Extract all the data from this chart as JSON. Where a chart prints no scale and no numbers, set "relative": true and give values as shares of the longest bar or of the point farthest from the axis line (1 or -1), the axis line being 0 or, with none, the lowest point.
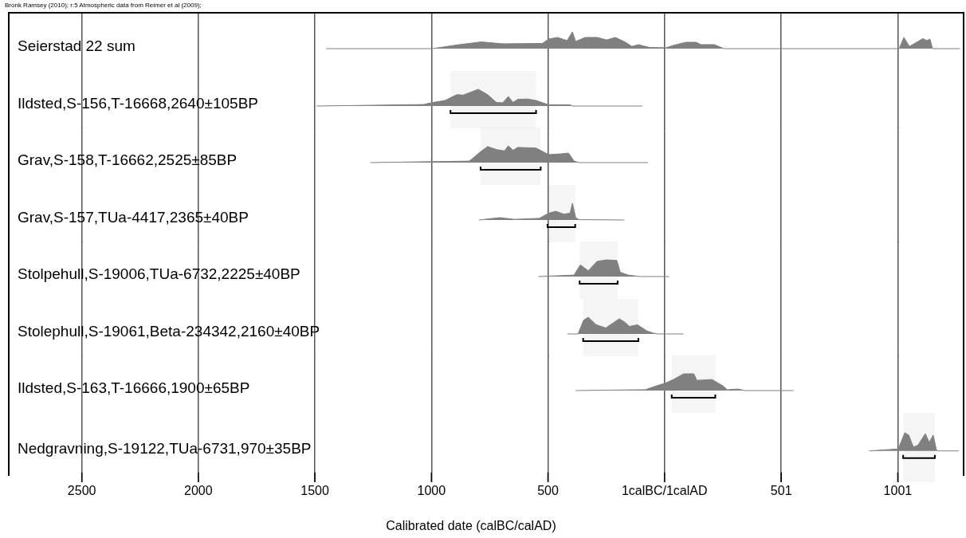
{
  "chart_data": [
    {
      "type": "area",
      "title": "Seierstad 22 sum",
      "annotations": [
        "Bronk Ramsey (2010); r:5 Atmospheric data from Reimer et al (2009);"
      ],
      "relative": true,
      "color": "#808080",
      "x": [
        -1452,
        -995,
        -891,
        -786,
        -694,
        -524,
        -497,
        -459,
        -418,
        -395,
        -381,
        -340,
        -289,
        -248,
        -211,
        -170,
        -139,
        -112,
        -65,
        7,
        37,
        92,
        136,
        156,
        214,
        255,
        1007,
        1027,
        1051,
        1109,
        1126,
        1139,
        1150,
        1153,
        1269
      ],
      "values": [
        0,
        0,
        0.22,
        0.4,
        0.29,
        0.31,
        0.57,
        0.67,
        0.48,
        1,
        0.43,
        0.67,
        0.67,
        0.52,
        0.67,
        0.4,
        0.13,
        0.24,
        0.07,
        0.05,
        0.19,
        0.38,
        0.38,
        0.24,
        0.24,
        0,
        0,
        0.67,
        0.13,
        0.6,
        0.48,
        0.57,
        0,
        0,
        0
      ],
      "xlim": [
        -2810,
        1280
      ],
      "xticks": [
        -2500,
        -2000,
        -1500,
        -1000,
        -500,
        0,
        501,
        1001
      ],
      "grid": "x",
      "tick_labels": false
    },
    {
      "type": "area",
      "title": "Ildsted,S-156,T-16668,2640±105BP",
      "relative": true,
      "color": "#808080",
      "x": [
        -1493,
        -1034,
        -995,
        -942,
        -891,
        -864,
        -799,
        -759,
        -721,
        -694,
        -670,
        -650,
        -629,
        -588,
        -551,
        -497,
        -405,
        -395,
        -95
      ],
      "values": [
        0,
        0.09,
        0.21,
        0.33,
        0.68,
        0.65,
        1,
        0.68,
        0.21,
        0.19,
        0.57,
        0.21,
        0.4,
        0.42,
        0.33,
        0.07,
        0.07,
        0,
        0
      ],
      "bands": [
        {
          "axis": "x",
          "from": -918,
          "to": -551
        }
      ],
      "xlim": [
        -2810,
        1280
      ],
      "xticks": [
        -2500,
        -2000,
        -1500,
        -1000,
        -500,
        0,
        501,
        1001
      ],
      "grid": "x",
      "tick_labels": false
    },
    {
      "type": "area",
      "title": "Grav,S-158,T-16662,2525±85BP",
      "relative": true,
      "color": "#808080",
      "x": [
        -1262,
        -837,
        -793,
        -759,
        -721,
        -687,
        -670,
        -650,
        -629,
        -551,
        -497,
        -446,
        -412,
        -388,
        -367,
        -71
      ],
      "values": [
        0,
        0.09,
        0.61,
        0.96,
        0.78,
        0.7,
        1,
        0.74,
        0.91,
        0.87,
        0.48,
        0.52,
        0.57,
        0.09,
        0,
        0
      ],
      "bands": [
        {
          "axis": "x",
          "from": -789,
          "to": -531
        }
      ],
      "xlim": [
        -2810,
        1280
      ],
      "xticks": [
        -2500,
        -2000,
        -1500,
        -1000,
        -500,
        0,
        501,
        1001
      ],
      "grid": "x",
      "tick_labels": false
    },
    {
      "type": "area",
      "title": "Grav,S-157,TUa-4417,2365±40BP",
      "relative": true,
      "color": "#808080",
      "x": [
        -796,
        -707,
        -643,
        -537,
        -497,
        -466,
        -432,
        -405,
        -395,
        -381,
        -367,
        -173
      ],
      "values": [
        0,
        0.14,
        0.04,
        0.1,
        0.41,
        0.52,
        0.35,
        0.41,
        1,
        0.14,
        0.02,
        0
      ],
      "bands": [
        {
          "axis": "x",
          "from": -502,
          "to": -383
        }
      ],
      "xlim": [
        -2810,
        1280
      ],
      "xticks": [
        -2500,
        -2000,
        -1500,
        -1000,
        -500,
        0,
        501,
        1001
      ],
      "grid": "x",
      "tick_labels": false
    },
    {
      "type": "area",
      "title": "Stolpehull,S-19006,TUa-6732,2225±40BP",
      "relative": true,
      "color": "#808080",
      "x": [
        -541,
        -388,
        -361,
        -327,
        -289,
        -248,
        -204,
        -190,
        -156,
        -105,
        20
      ],
      "values": [
        0,
        0.09,
        0.7,
        0.35,
        0.91,
        1,
        0.96,
        0.26,
        0.09,
        0,
        0
      ],
      "bands": [
        {
          "axis": "x",
          "from": -364,
          "to": -201
        }
      ],
      "xlim": [
        -2810,
        1280
      ],
      "xticks": [
        -2500,
        -2000,
        -1500,
        -1000,
        -500,
        0,
        501,
        1001
      ],
      "grid": "x",
      "tick_labels": false
    },
    {
      "type": "area",
      "title": "Stolephull,S-19061,Beta-234342,2160±40BP",
      "relative": true,
      "color": "#808080",
      "x": [
        -417,
        -371,
        -347,
        -327,
        -293,
        -252,
        -218,
        -194,
        -173,
        -150,
        -116,
        -75,
        -48,
        -27,
        82
      ],
      "values": [
        0,
        0,
        0.82,
        1,
        0.55,
        0.36,
        0.68,
        0.91,
        0.73,
        0.45,
        0.55,
        0.18,
        0.05,
        0,
        0
      ],
      "bands": [
        {
          "axis": "x",
          "from": -349,
          "to": -112
        }
      ],
      "xlim": [
        -2810,
        1280
      ],
      "xticks": [
        -2500,
        -2000,
        -1500,
        -1000,
        -500,
        0,
        501,
        1001
      ],
      "grid": "x",
      "tick_labels": false
    },
    {
      "type": "area",
      "title": "Ildsted,S-163,T-16666,1900±65BP",
      "relative": true,
      "color": "#808080",
      "x": [
        -381,
        -82,
        -37,
        3,
        41,
        82,
        126,
        139,
        204,
        252,
        269,
        316,
        344,
        554
      ],
      "values": [
        0,
        0.05,
        0.27,
        0.44,
        0.68,
        1,
        1,
        0.61,
        0.66,
        0.27,
        0.05,
        0.09,
        0,
        0
      ],
      "bands": [
        {
          "axis": "x",
          "from": 31,
          "to": 218
        }
      ],
      "xlim": [
        -2810,
        1280
      ],
      "xticks": [
        -2500,
        -2000,
        -1500,
        -1000,
        -500,
        0,
        501,
        1001
      ],
      "grid": "x",
      "tick_labels": false
    },
    {
      "type": "area",
      "title": "Nedgravning,S-19122,TUa-6731,970±35BP",
      "xlabel": "Calibrated date (calBC/calAD)",
      "relative": true,
      "color": "#808080",
      "x": [
        878,
        1003,
        1031,
        1048,
        1068,
        1088,
        1119,
        1136,
        1153,
        1167,
        1173,
        1262
      ],
      "values": [
        0,
        0.11,
        1,
        0.87,
        0.21,
        0.32,
        0.95,
        0.47,
        0.87,
        0.05,
        0,
        0
      ],
      "bands": [
        {
          "axis": "x",
          "from": 1024,
          "to": 1160
        }
      ],
      "xlim": [
        -2810,
        1280
      ],
      "xticks": [
        {
          "value": -2500,
          "label": "2500"
        },
        {
          "value": -2000,
          "label": "2000"
        },
        {
          "value": -1500,
          "label": "1500"
        },
        {
          "value": -1000,
          "label": "1000"
        },
        {
          "value": -500,
          "label": "500"
        },
        {
          "value": 0,
          "label": "1calBC/1calAD"
        },
        501,
        1001
      ],
      "grid": "x",
      "tick_labels": "x"
    }
  ]
}
